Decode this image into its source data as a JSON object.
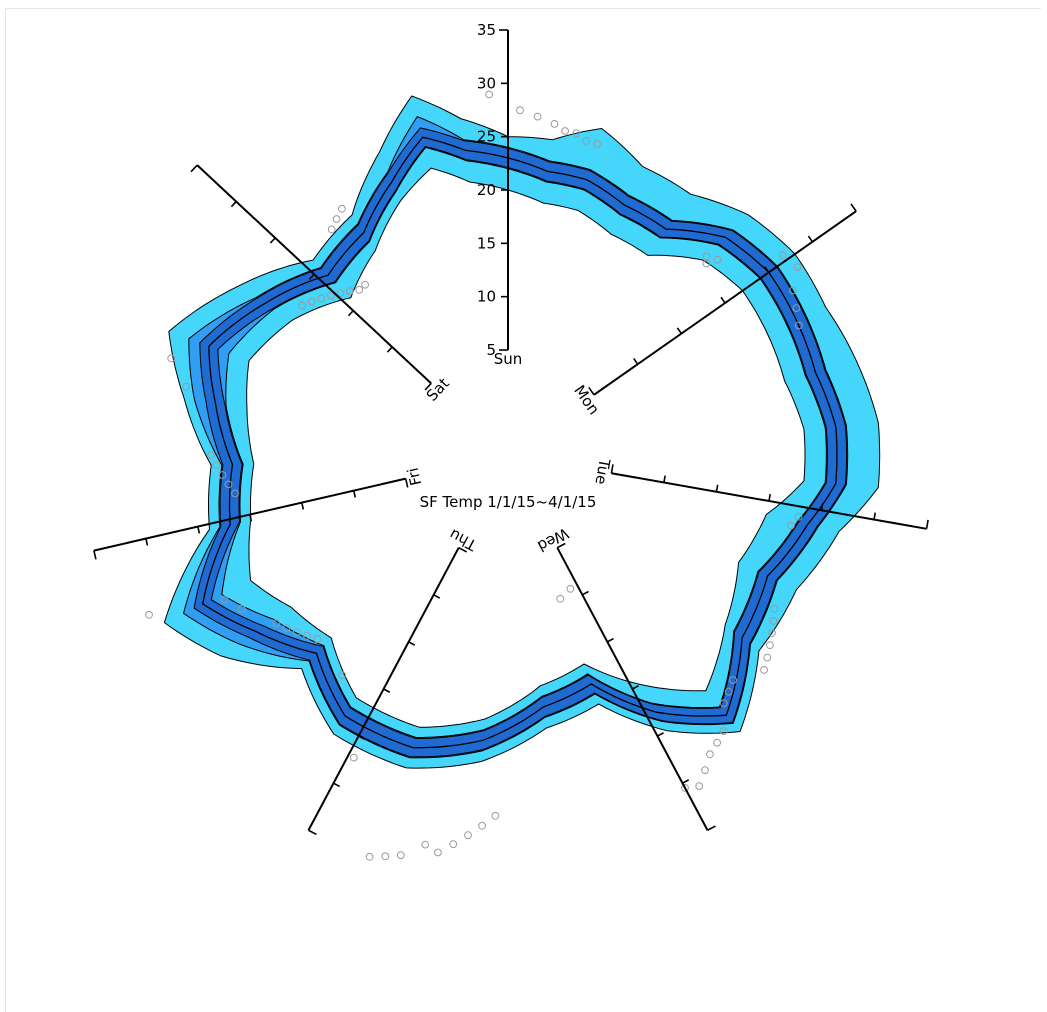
{
  "chart_data": {
    "type": "radial-area",
    "title": "SF Temp 1/1/15~4/1/15",
    "axis_ticks": [
      5,
      10,
      15,
      20,
      25,
      30,
      35
    ],
    "radial_range": [
      5,
      35
    ],
    "days": [
      {
        "label": "Sun",
        "angle_deg": 0
      },
      {
        "label": "Mon",
        "angle_deg": 55
      },
      {
        "label": "Tue",
        "angle_deg": 100
      },
      {
        "label": "Wed",
        "angle_deg": 152
      },
      {
        "label": "Thu",
        "angle_deg": 208
      },
      {
        "label": "Fri",
        "angle_deg": 257
      },
      {
        "label": "Sat",
        "angle_deg": 313
      }
    ],
    "profile": [
      {
        "angle": 0,
        "p5": 20,
        "q1": 22,
        "med": 23,
        "q3": 24,
        "p95": 25
      },
      {
        "angle": 8,
        "p5": 19,
        "q1": 21,
        "med": 22,
        "q3": 23,
        "p95": 25
      },
      {
        "angle": 16,
        "p5": 19,
        "q1": 21,
        "med": 22,
        "q3": 23,
        "p95": 27
      },
      {
        "angle": 25,
        "p5": 18,
        "q1": 20,
        "med": 21,
        "q3": 22,
        "p95": 25
      },
      {
        "angle": 35,
        "p5": 18,
        "q1": 20,
        "med": 21,
        "q3": 22,
        "p95": 25
      },
      {
        "angle": 45,
        "p5": 21,
        "q1": 23,
        "med": 24,
        "q3": 25,
        "p95": 27
      },
      {
        "angle": 55,
        "p5": 22,
        "q1": 24,
        "med": 25,
        "q3": 26,
        "p95": 28
      },
      {
        "angle": 65,
        "p5": 22,
        "q1": 24,
        "med": 25,
        "q3": 26,
        "p95": 28
      },
      {
        "angle": 75,
        "p5": 22,
        "q1": 24,
        "med": 25,
        "q3": 26,
        "p95": 29
      },
      {
        "angle": 85,
        "p5": 23,
        "q1": 25,
        "med": 26,
        "q3": 27,
        "p95": 30
      },
      {
        "angle": 95,
        "p5": 23,
        "q1": 25,
        "med": 26,
        "q3": 27,
        "p95": 30
      },
      {
        "angle": 103,
        "p5": 20,
        "q1": 23,
        "med": 24,
        "q3": 25,
        "p95": 27
      },
      {
        "angle": 115,
        "p5": 19,
        "q1": 21,
        "med": 22,
        "q3": 23,
        "p95": 25
      },
      {
        "angle": 128,
        "p5": 21,
        "q1": 22,
        "med": 23,
        "q3": 24,
        "p95": 25
      },
      {
        "angle": 140,
        "p5": 24,
        "q1": 26,
        "med": 27,
        "q3": 28,
        "p95": 29
      },
      {
        "angle": 150,
        "p5": 20,
        "q1": 22,
        "med": 23,
        "q3": 24,
        "p95": 25
      },
      {
        "angle": 160,
        "p5": 16,
        "q1": 17,
        "med": 18,
        "q3": 19,
        "p95": 20
      },
      {
        "angle": 172,
        "p5": 17,
        "q1": 18,
        "med": 19,
        "q3": 20,
        "p95": 21
      },
      {
        "angle": 185,
        "p5": 20,
        "q1": 21,
        "med": 22,
        "q3": 23,
        "p95": 24
      },
      {
        "angle": 198,
        "p5": 22,
        "q1": 23,
        "med": 24,
        "q3": 25,
        "p95": 26
      },
      {
        "angle": 212,
        "p5": 22,
        "q1": 23,
        "med": 24,
        "q3": 25,
        "p95": 26
      },
      {
        "angle": 224,
        "p5": 19,
        "q1": 20,
        "med": 21,
        "q3": 22,
        "p95": 23
      },
      {
        "angle": 235,
        "p5": 20,
        "q1": 22,
        "med": 24,
        "q3": 26,
        "p95": 28
      },
      {
        "angle": 244,
        "p5": 22,
        "q1": 25,
        "med": 27,
        "q3": 29,
        "p95": 31
      },
      {
        "angle": 256,
        "p5": 20,
        "q1": 21,
        "med": 22,
        "q3": 23,
        "p95": 24
      },
      {
        "angle": 268,
        "p5": 19,
        "q1": 20,
        "med": 21,
        "q3": 22,
        "p95": 23
      },
      {
        "angle": 280,
        "p5": 20,
        "q1": 22,
        "med": 23,
        "q3": 25,
        "p95": 26
      },
      {
        "angle": 290,
        "p5": 21,
        "q1": 23,
        "med": 25,
        "q3": 27,
        "p95": 29
      },
      {
        "angle": 302,
        "p5": 19,
        "q1": 21,
        "med": 22,
        "q3": 23,
        "p95": 25
      },
      {
        "angle": 315,
        "p5": 16,
        "q1": 18,
        "med": 19,
        "q3": 20,
        "p95": 21
      },
      {
        "angle": 327,
        "p5": 18,
        "q1": 19,
        "med": 20,
        "q3": 21,
        "p95": 22
      },
      {
        "angle": 337,
        "p5": 21,
        "q1": 22,
        "med": 23,
        "q3": 24,
        "p95": 26
      },
      {
        "angle": 345,
        "p5": 23,
        "q1": 25,
        "med": 26,
        "q3": 28,
        "p95": 30
      },
      {
        "angle": 352,
        "p5": 21,
        "q1": 23,
        "med": 24,
        "q3": 25,
        "p95": 27
      }
    ],
    "outliers": [
      {
        "angle": 5,
        "value": 27
      },
      {
        "angle": 8,
        "value": 26.5
      },
      {
        "angle": 10,
        "value": 26
      },
      {
        "angle": 12,
        "value": 26
      },
      {
        "angle": 14,
        "value": 25.5
      },
      {
        "angle": 16,
        "value": 25.5
      },
      {
        "angle": 357,
        "value": 29
      },
      {
        "angle": 2,
        "value": 27.5
      },
      {
        "angle": 54,
        "value": 27
      },
      {
        "angle": 57,
        "value": 27.5
      },
      {
        "angle": 60,
        "value": 26
      },
      {
        "angle": 63,
        "value": 25.5
      },
      {
        "angle": 66,
        "value": 25
      },
      {
        "angle": 47,
        "value": 22
      },
      {
        "angle": 46,
        "value": 21
      },
      {
        "angle": 45,
        "value": 21.5
      },
      {
        "angle": 102,
        "value": 23
      },
      {
        "angle": 104,
        "value": 22.5
      },
      {
        "angle": 120,
        "value": 24
      },
      {
        "angle": 122,
        "value": 24.5
      },
      {
        "angle": 124,
        "value": 25
      },
      {
        "angle": 126,
        "value": 25.5
      },
      {
        "angle": 128,
        "value": 26
      },
      {
        "angle": 130,
        "value": 26.5
      },
      {
        "angle": 135,
        "value": 25
      },
      {
        "angle": 137,
        "value": 25.5
      },
      {
        "angle": 139,
        "value": 26
      },
      {
        "angle": 142,
        "value": 28
      },
      {
        "angle": 144,
        "value": 28.5
      },
      {
        "angle": 146,
        "value": 29
      },
      {
        "angle": 148,
        "value": 30
      },
      {
        "angle": 150,
        "value": 31
      },
      {
        "angle": 152,
        "value": 30.5
      },
      {
        "angle": 155,
        "value": 9
      },
      {
        "angle": 160,
        "value": 9.5
      },
      {
        "angle": 182,
        "value": 29
      },
      {
        "angle": 184,
        "value": 30
      },
      {
        "angle": 186,
        "value": 31
      },
      {
        "angle": 188,
        "value": 32
      },
      {
        "angle": 190,
        "value": 33
      },
      {
        "angle": 192,
        "value": 32.5
      },
      {
        "angle": 195,
        "value": 34
      },
      {
        "angle": 197,
        "value": 34.5
      },
      {
        "angle": 199,
        "value": 35
      },
      {
        "angle": 207,
        "value": 27
      },
      {
        "angle": 217,
        "value": 21
      },
      {
        "angle": 226,
        "value": 20
      },
      {
        "angle": 228,
        "value": 20.5
      },
      {
        "angle": 230,
        "value": 21
      },
      {
        "angle": 232,
        "value": 21.5
      },
      {
        "angle": 234,
        "value": 22
      },
      {
        "angle": 240,
        "value": 24
      },
      {
        "angle": 243,
        "value": 25
      },
      {
        "angle": 246,
        "value": 32
      },
      {
        "angle": 262,
        "value": 21
      },
      {
        "angle": 264,
        "value": 21.5
      },
      {
        "angle": 266,
        "value": 22
      },
      {
        "angle": 268,
        "value": 22.5
      },
      {
        "angle": 270,
        "value": 23
      },
      {
        "angle": 282,
        "value": 26
      },
      {
        "angle": 286,
        "value": 28
      },
      {
        "angle": 306,
        "value": 19
      },
      {
        "angle": 308,
        "value": 18.5
      },
      {
        "angle": 310,
        "value": 18
      },
      {
        "angle": 312,
        "value": 17.5
      },
      {
        "angle": 314,
        "value": 17
      },
      {
        "angle": 316,
        "value": 16.5
      },
      {
        "angle": 318,
        "value": 16
      },
      {
        "angle": 320,
        "value": 16
      },
      {
        "angle": 322,
        "value": 22
      },
      {
        "angle": 324,
        "value": 22.5
      },
      {
        "angle": 326,
        "value": 23
      }
    ],
    "colors": {
      "outer": "#45d7fb",
      "mid": "#2f9ef3",
      "inner": "#206bd1",
      "outlier": "#9a9a9a"
    }
  }
}
